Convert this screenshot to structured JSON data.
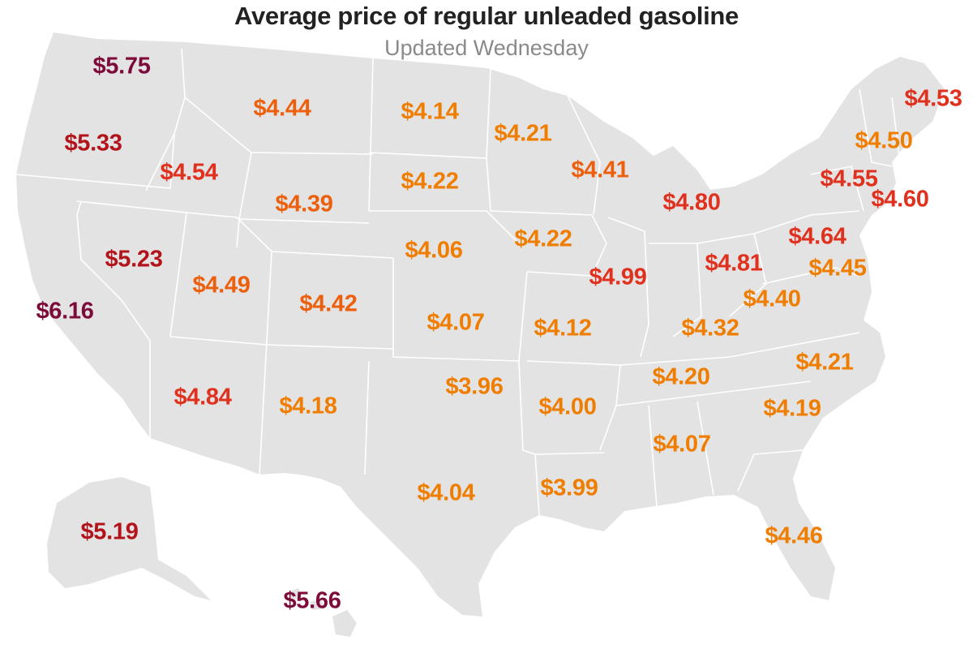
{
  "title": "Average price of regular unleaded gasoline",
  "subtitle": "Updated Wednesday",
  "colors": {
    "background": "#ffffff",
    "land": "#e3e3e3",
    "border": "#ffffff",
    "title": "#222222",
    "subtitle": "#8a8a8a",
    "tier_low": "#ef7d00",
    "tier_midlow": "#ec5f0c",
    "tier_mid": "#e0301e",
    "tier_high": "#b3131b",
    "tier_top": "#7d0b3a"
  },
  "prices": {
    "wa": "$5.75",
    "or": "$5.33",
    "ca": "$6.16",
    "nv": "$5.23",
    "id": "$4.54",
    "mt": "$4.44",
    "wy": "$4.39",
    "ut": "$4.49",
    "az": "$4.84",
    "co": "$4.42",
    "nm": "$4.18",
    "nd": "$4.14",
    "sd": "$4.22",
    "ne": "$4.06",
    "ks": "$4.07",
    "ok": "$3.96",
    "tx": "$4.04",
    "mn": "$4.21",
    "ia": "$4.22",
    "mo": "$4.12",
    "ar": "$4.00",
    "la": "$3.99",
    "wi": "$4.41",
    "il": "$4.99",
    "mi": "$4.80",
    "in": "$4.81",
    "oh": "$4.64",
    "ky": "$4.32",
    "tn": "$4.20",
    "ms": "$4.07",
    "al": "$4.07",
    "ga": "$4.19",
    "fl": "$4.46",
    "sc": "$4.19",
    "nc": "$4.21",
    "va": "$4.40",
    "wv": "$4.40",
    "pa": "$4.64",
    "ny": "$4.55",
    "vt": "$4.50",
    "me": "$4.53",
    "nh": "$4.50",
    "ma": "$4.60",
    "ct": "$4.60",
    "md": "$4.45",
    "ak": "$5.19",
    "hi": "$5.66"
  },
  "labels": [
    {
      "id": "wa",
      "text": "$5.75",
      "tier": "tier_top"
    },
    {
      "id": "or",
      "text": "$5.33",
      "tier": "tier_high"
    },
    {
      "id": "ca",
      "text": "$6.16",
      "tier": "tier_top"
    },
    {
      "id": "nv",
      "text": "$5.23",
      "tier": "tier_high"
    },
    {
      "id": "id",
      "text": "$4.54",
      "tier": "tier_mid"
    },
    {
      "id": "mt",
      "text": "$4.44",
      "tier": "tier_midlow"
    },
    {
      "id": "wy",
      "text": "$4.39",
      "tier": "tier_midlow"
    },
    {
      "id": "ut",
      "text": "$4.49",
      "tier": "tier_midlow"
    },
    {
      "id": "az",
      "text": "$4.84",
      "tier": "tier_mid"
    },
    {
      "id": "co",
      "text": "$4.42",
      "tier": "tier_midlow"
    },
    {
      "id": "nm",
      "text": "$4.18",
      "tier": "tier_low"
    },
    {
      "id": "nd",
      "text": "$4.14",
      "tier": "tier_low"
    },
    {
      "id": "sd",
      "text": "$4.22",
      "tier": "tier_low"
    },
    {
      "id": "ne",
      "text": "$4.06",
      "tier": "tier_low"
    },
    {
      "id": "ks",
      "text": "$4.07",
      "tier": "tier_low"
    },
    {
      "id": "ok",
      "text": "$3.96",
      "tier": "tier_low"
    },
    {
      "id": "tx",
      "text": "$4.04",
      "tier": "tier_low"
    },
    {
      "id": "mn",
      "text": "$4.21",
      "tier": "tier_low"
    },
    {
      "id": "ia",
      "text": "$4.22",
      "tier": "tier_low"
    },
    {
      "id": "mo",
      "text": "$4.12",
      "tier": "tier_low"
    },
    {
      "id": "ar",
      "text": "$4.00",
      "tier": "tier_low"
    },
    {
      "id": "la",
      "text": "$3.99",
      "tier": "tier_low"
    },
    {
      "id": "wi",
      "text": "$4.41",
      "tier": "tier_midlow"
    },
    {
      "id": "il",
      "text": "$4.99",
      "tier": "tier_mid"
    },
    {
      "id": "mi",
      "text": "$4.80",
      "tier": "tier_mid"
    },
    {
      "id": "in",
      "text": "$4.81",
      "tier": "tier_mid"
    },
    {
      "id": "oh",
      "text": "$4.64",
      "tier": "tier_mid"
    },
    {
      "id": "ky",
      "text": "$4.32",
      "tier": "tier_low"
    },
    {
      "id": "tn",
      "text": "$4.20",
      "tier": "tier_low"
    },
    {
      "id": "ms",
      "text": "$4.07",
      "tier": "tier_low"
    },
    {
      "id": "ga",
      "text": "$4.19",
      "tier": "tier_low"
    },
    {
      "id": "fl",
      "text": "$4.46",
      "tier": "tier_low"
    },
    {
      "id": "nc",
      "text": "$4.21",
      "tier": "tier_low"
    },
    {
      "id": "va",
      "text": "$4.40",
      "tier": "tier_low"
    },
    {
      "id": "md",
      "text": "$4.45",
      "tier": "tier_low"
    },
    {
      "id": "ny",
      "text": "$4.55",
      "tier": "tier_mid"
    },
    {
      "id": "vt",
      "text": "$4.50",
      "tier": "tier_low"
    },
    {
      "id": "me",
      "text": "$4.53",
      "tier": "tier_mid"
    },
    {
      "id": "ma",
      "text": "$4.60",
      "tier": "tier_mid"
    },
    {
      "id": "ak",
      "text": "$5.19",
      "tier": "tier_high"
    },
    {
      "id": "hi",
      "text": "$5.66",
      "tier": "tier_top"
    }
  ]
}
